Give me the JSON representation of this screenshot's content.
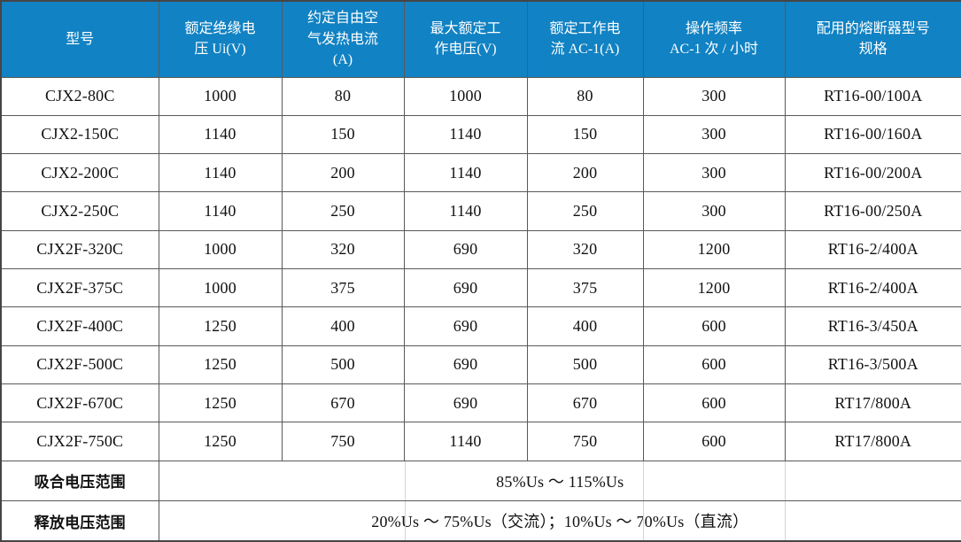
{
  "colors": {
    "header_bg": "#1182C3",
    "header_text": "#FFFFFF",
    "border": "#595959",
    "outer_border": "#454545",
    "body_text": "#111111",
    "faint_line": "#D4D4D4"
  },
  "table": {
    "header": {
      "columns": [
        "型号",
        "额定绝缘电\n压 Ui(V)",
        "约定自由空\n气发热电流\n(A)",
        "最大额定工\n作电压(V)",
        "额定工作电\n流 AC-1(A)",
        "操作频率\nAC-1 次 / 小时",
        "配用的熔断器型号\n规格"
      ]
    },
    "rows": [
      [
        "CJX2-80C",
        "1000",
        "80",
        "1000",
        "80",
        "300",
        "RT16-00/100A"
      ],
      [
        "CJX2-150C",
        "1140",
        "150",
        "1140",
        "150",
        "300",
        "RT16-00/160A"
      ],
      [
        "CJX2-200C",
        "1140",
        "200",
        "1140",
        "200",
        "300",
        "RT16-00/200A"
      ],
      [
        "CJX2-250C",
        "1140",
        "250",
        "1140",
        "250",
        "300",
        "RT16-00/250A"
      ],
      [
        "CJX2F-320C",
        "1000",
        "320",
        "690",
        "320",
        "1200",
        "RT16-2/400A"
      ],
      [
        "CJX2F-375C",
        "1000",
        "375",
        "690",
        "375",
        "1200",
        "RT16-2/400A"
      ],
      [
        "CJX2F-400C",
        "1250",
        "400",
        "690",
        "400",
        "600",
        "RT16-3/450A"
      ],
      [
        "CJX2F-500C",
        "1250",
        "500",
        "690",
        "500",
        "600",
        "RT16-3/500A"
      ],
      [
        "CJX2F-670C",
        "1250",
        "670",
        "690",
        "670",
        "600",
        "RT17/800A"
      ],
      [
        "CJX2F-750C",
        "1250",
        "750",
        "1140",
        "750",
        "600",
        "RT17/800A"
      ]
    ],
    "footer_rows": [
      {
        "label": "吸合电压范围",
        "value": "85%Us ～ 115%Us"
      },
      {
        "label": "释放电压范围",
        "value": "20%Us ～ 75%Us（交流）；10%Us ～ 70%Us（直流）"
      }
    ]
  }
}
